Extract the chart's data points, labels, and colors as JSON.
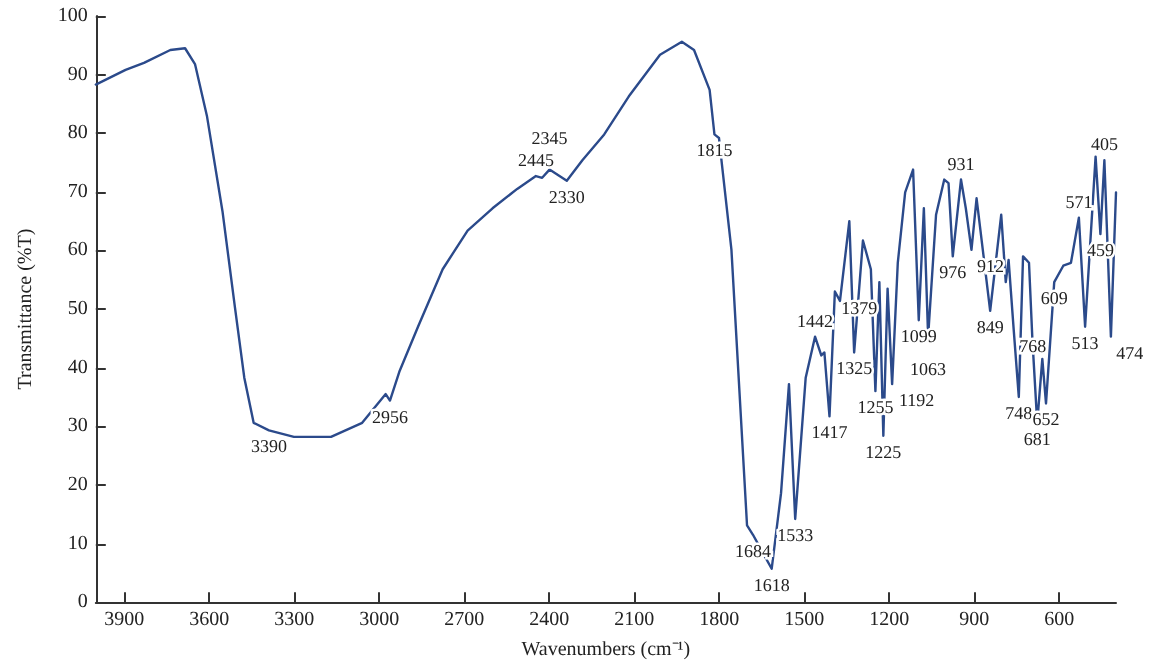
{
  "chart_data": {
    "type": "line",
    "xlabel": "Wavenumbers (cm⁻¹)",
    "ylabel": "Transmittance (%T)",
    "xlim": [
      4000,
      400
    ],
    "xticks": [
      3900,
      3600,
      3300,
      3000,
      2700,
      2400,
      2100,
      1800,
      1500,
      1200,
      900,
      600
    ],
    "ylim": [
      0,
      100
    ],
    "yticks": [
      0,
      10,
      20,
      30,
      40,
      50,
      60,
      70,
      80,
      90,
      100
    ],
    "grid": false,
    "marker": "none",
    "line_style": "solid",
    "series": [
      {
        "color": "#2b4a8b",
        "x": [
          4000,
          3895,
          3830,
          3737,
          3685,
          3650,
          3608,
          3553,
          3509,
          3476,
          3443,
          3389,
          3301,
          3170,
          3060,
          2977,
          2962,
          2929,
          2863,
          2776,
          2688,
          2600,
          2513,
          2447,
          2425,
          2399,
          2338,
          2283,
          2206,
          2119,
          2009,
          1932,
          1889,
          1834,
          1817,
          1801,
          1757,
          1702,
          1681,
          1615,
          1582,
          1554,
          1532,
          1495,
          1462,
          1440,
          1429,
          1411,
          1392,
          1374,
          1341,
          1324,
          1293,
          1265,
          1249,
          1235,
          1221,
          1206,
          1190,
          1170,
          1144,
          1116,
          1096,
          1078,
          1063,
          1035,
          1006,
          991,
          976,
          947,
          930,
          910,
          892,
          844,
          805,
          789,
          779,
          761,
          743,
          728,
          707,
          695,
          678,
          660,
          647,
          618,
          586,
          559,
          531,
          509,
          472,
          455,
          441,
          418,
          400
        ],
        "values": [
          88.3,
          90.8,
          92,
          94.2,
          94.5,
          91.8,
          83,
          66.7,
          50.3,
          38.3,
          30.6,
          29.3,
          28.2,
          28.2,
          30.6,
          35.5,
          34.4,
          39.3,
          47,
          56.8,
          63.4,
          67.2,
          70.5,
          72.7,
          72.4,
          73.8,
          71.9,
          75.4,
          79.8,
          86.3,
          93.4,
          95.6,
          94.2,
          87.4,
          79.8,
          79.2,
          60.1,
          13.1,
          11.5,
          5.7,
          18.6,
          37.2,
          14.2,
          38.3,
          45.3,
          42.1,
          42.6,
          31.7,
          53,
          51.4,
          65,
          42.6,
          61.7,
          56.8,
          36,
          54.6,
          28.4,
          53.5,
          37.2,
          57.9,
          69.9,
          73.8,
          48.1,
          67.2,
          45.3,
          66.1,
          72.1,
          71.5,
          59,
          72.1,
          67.2,
          60.1,
          68.9,
          49.7,
          66.1,
          54.6,
          58.4,
          46.5,
          35,
          59,
          57.9,
          44.8,
          30.6,
          41.5,
          33.9,
          54.6,
          57.4,
          57.9,
          65.6,
          47,
          76,
          62.8,
          75.4,
          45.3,
          69.9
        ]
      }
    ],
    "annotations": [
      {
        "text": "3390",
        "x": 3389,
        "y": 29.3
      },
      {
        "text": "2956",
        "x": 2962,
        "y": 34.4
      },
      {
        "text": "2445",
        "x": 2447,
        "y": 72.7
      },
      {
        "text": "2345",
        "x": 2399,
        "y": 73.8
      },
      {
        "text": "2330",
        "x": 2338,
        "y": 71.9
      },
      {
        "text": "1815",
        "x": 1817,
        "y": 79.8
      },
      {
        "text": "1684",
        "x": 1681,
        "y": 11.5
      },
      {
        "text": "1618",
        "x": 1615,
        "y": 5.7
      },
      {
        "text": "1533",
        "x": 1532,
        "y": 14.2
      },
      {
        "text": "1442",
        "x": 1462,
        "y": 45.3
      },
      {
        "text": "1417",
        "x": 1411,
        "y": 31.7
      },
      {
        "text": "1379",
        "x": 1392,
        "y": 53
      },
      {
        "text": "1325",
        "x": 1324,
        "y": 42.6
      },
      {
        "text": "1255",
        "x": 1249,
        "y": 36
      },
      {
        "text": "1225",
        "x": 1221,
        "y": 28.4
      },
      {
        "text": "1192",
        "x": 1190,
        "y": 37.2
      },
      {
        "text": "1099",
        "x": 1096,
        "y": 48.1
      },
      {
        "text": "1063",
        "x": 1063,
        "y": 45.3
      },
      {
        "text": "976",
        "x": 976,
        "y": 59
      },
      {
        "text": "931",
        "x": 947,
        "y": 72.1
      },
      {
        "text": "912",
        "x": 910,
        "y": 60.1
      },
      {
        "text": "849",
        "x": 844,
        "y": 49.7
      },
      {
        "text": "768",
        "x": 761,
        "y": 46.5
      },
      {
        "text": "748",
        "x": 743,
        "y": 35
      },
      {
        "text": "681",
        "x": 678,
        "y": 30.6
      },
      {
        "text": "652",
        "x": 647,
        "y": 33.9
      },
      {
        "text": "609",
        "x": 618,
        "y": 54.6
      },
      {
        "text": "571",
        "x": 531,
        "y": 65.6
      },
      {
        "text": "513",
        "x": 509,
        "y": 47
      },
      {
        "text": "474",
        "x": 418,
        "y": 45.3
      },
      {
        "text": "459",
        "x": 455,
        "y": 62.8
      },
      {
        "text": "405",
        "x": 441,
        "y": 75.4
      }
    ]
  }
}
